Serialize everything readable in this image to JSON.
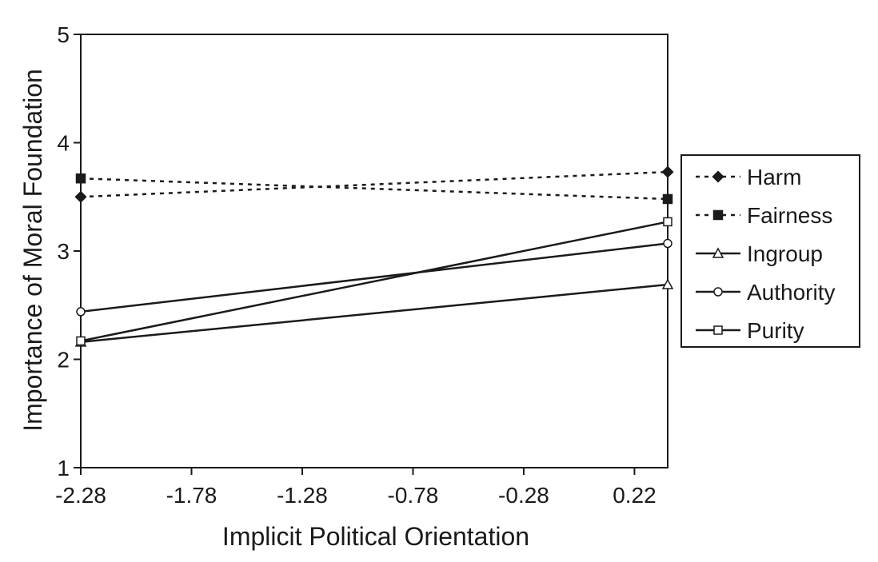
{
  "chart_data": {
    "type": "line",
    "title": "",
    "xlabel": "Implicit Political Orientation",
    "ylabel": "Importance of Moral Foundation",
    "x_ticks": [
      "-2.28",
      "-1.78",
      "-1.28",
      "-0.78",
      "-0.28",
      "0.22"
    ],
    "x_tick_values": [
      -2.28,
      -1.78,
      -1.28,
      -0.78,
      -0.28,
      0.22
    ],
    "y_ticks": [
      "1",
      "2",
      "3",
      "4",
      "5"
    ],
    "y_tick_values": [
      1,
      2,
      3,
      4,
      5
    ],
    "xlim": [
      -2.28,
      0.37
    ],
    "ylim": [
      1,
      5
    ],
    "grid": false,
    "legend_position": "right",
    "series": [
      {
        "name": "Harm",
        "x": [
          -2.28,
          0.37
        ],
        "values": [
          3.5,
          3.73
        ],
        "marker": "diamond",
        "line_style": "dotted"
      },
      {
        "name": "Fairness",
        "x": [
          -2.28,
          0.37
        ],
        "values": [
          3.67,
          3.48
        ],
        "marker": "square-filled",
        "line_style": "dotted"
      },
      {
        "name": "Ingroup",
        "x": [
          -2.28,
          0.37
        ],
        "values": [
          2.16,
          2.69
        ],
        "marker": "triangle-open",
        "line_style": "solid"
      },
      {
        "name": "Authority",
        "x": [
          -2.28,
          0.37
        ],
        "values": [
          2.44,
          3.07
        ],
        "marker": "circle-open",
        "line_style": "solid"
      },
      {
        "name": "Purity",
        "x": [
          -2.28,
          0.37
        ],
        "values": [
          2.17,
          3.27
        ],
        "marker": "square-open",
        "line_style": "solid"
      }
    ],
    "colors": {
      "ink": "#1a1a1a",
      "background": "#ffffff"
    }
  }
}
